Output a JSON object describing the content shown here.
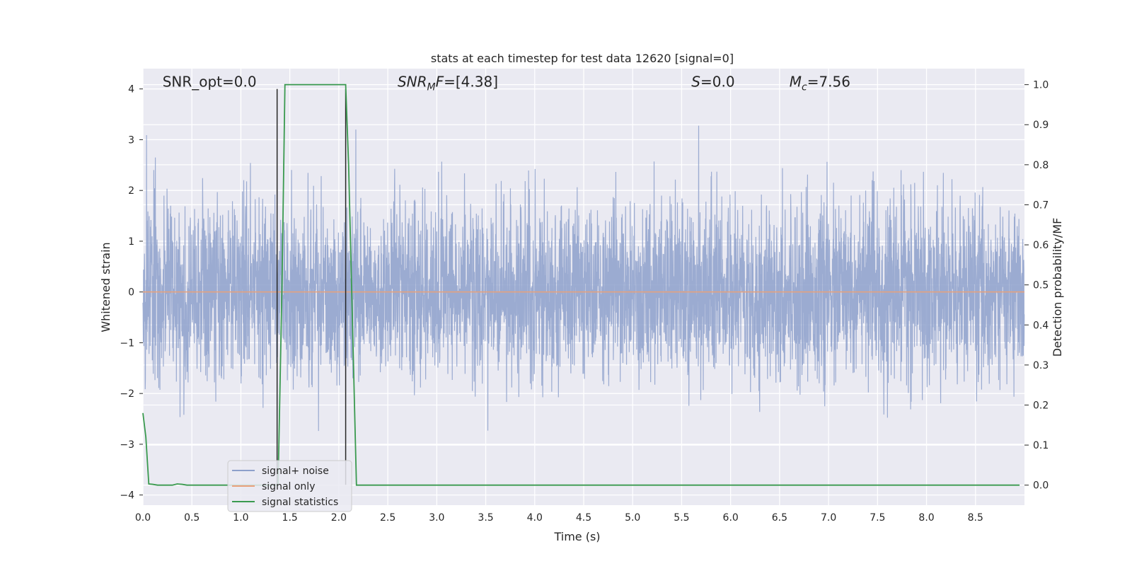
{
  "chart_data": {
    "type": "line",
    "title": "stats at each timestep for test data 12620 [signal=0]",
    "xlabel": "Time (s)",
    "ylabel_left": "Whitened strain",
    "ylabel_right": "Detection probability/MF",
    "xlim": [
      0.0,
      9.0
    ],
    "ylim_left": [
      -4.2,
      4.4
    ],
    "ylim_right": [
      -0.05,
      1.04
    ],
    "x_ticks": [
      0.0,
      0.5,
      1.0,
      1.5,
      2.0,
      2.5,
      3.0,
      3.5,
      4.0,
      4.5,
      5.0,
      5.5,
      6.0,
      6.5,
      7.0,
      7.5,
      8.0,
      8.5
    ],
    "x_tick_labels": [
      "0.0",
      "0.5",
      "1.0",
      "1.5",
      "2.0",
      "2.5",
      "3.0",
      "3.5",
      "4.0",
      "4.5",
      "5.0",
      "5.5",
      "6.0",
      "6.5",
      "7.0",
      "7.5",
      "8.0",
      "8.5"
    ],
    "y_left_ticks": [
      -4,
      -3,
      -2,
      -1,
      0,
      1,
      2,
      3,
      4
    ],
    "y_left_tick_labels": [
      "−4",
      "−3",
      "−2",
      "−1",
      "0",
      "1",
      "2",
      "3",
      "4"
    ],
    "y_right_ticks": [
      0.0,
      0.1,
      0.2,
      0.3,
      0.4,
      0.5,
      0.6,
      0.7,
      0.8,
      0.9,
      1.0
    ],
    "y_right_tick_labels": [
      "0.0",
      "0.1",
      "0.2",
      "0.3",
      "0.4",
      "0.5",
      "0.6",
      "0.7",
      "0.8",
      "0.9",
      "1.0"
    ],
    "grid": true,
    "legend_position": "lower-left",
    "legend": [
      {
        "label": "signal+ noise",
        "color": "#8da0cb"
      },
      {
        "label": "signal only",
        "color": "#e8a07a"
      },
      {
        "label": "signal statistics",
        "color": "#3a9a4f"
      }
    ],
    "annotations": [
      {
        "text": "SNR_opt=0.0",
        "x": 0.2,
        "y": 4.1
      },
      {
        "text": "SNR",
        "sub": "M",
        "suffix": "F=[4.38]",
        "italic": true,
        "x": 2.6,
        "y": 4.1
      },
      {
        "text": "S",
        "suffix": "=0.0",
        "italic": true,
        "x": 5.6,
        "y": 4.1
      },
      {
        "text": "M",
        "sub": "c",
        "suffix": "=7.56",
        "italic": true,
        "x": 6.6,
        "y": 4.1
      }
    ],
    "vertical_lines": [
      {
        "x": 1.37,
        "y0": -3.8,
        "y1": 4.0,
        "color": "#262626"
      },
      {
        "x": 2.07,
        "y0": -3.8,
        "y1": 4.0,
        "color": "#262626"
      }
    ],
    "series": [
      {
        "name": "signal+ noise",
        "axis": "left",
        "color": "#8da0cb",
        "sample_rate_hz": 512,
        "amplitude_std": 0.85,
        "seed": 12620
      },
      {
        "name": "signal only",
        "axis": "left",
        "color": "#e8a07a",
        "x": [
          0.0,
          9.0
        ],
        "y": [
          0.0,
          0.0
        ]
      },
      {
        "name": "signal statistics",
        "axis": "right",
        "color": "#3a9a4f",
        "x": [
          0.0,
          0.03,
          0.06,
          0.1,
          0.15,
          0.2,
          0.25,
          0.3,
          0.35,
          0.4,
          0.45,
          0.5,
          1.0,
          1.38,
          1.42,
          1.45,
          2.07,
          2.1,
          2.18,
          2.2,
          3.0,
          8.95
        ],
        "y": [
          0.18,
          0.12,
          0.003,
          0.002,
          0.0,
          0.0,
          0.0,
          0.0,
          0.003,
          0.002,
          0.0,
          0.0,
          0.0,
          0.0,
          0.5,
          1.0,
          1.0,
          0.8,
          0.0,
          0.0,
          0.0,
          0.0
        ]
      }
    ]
  }
}
